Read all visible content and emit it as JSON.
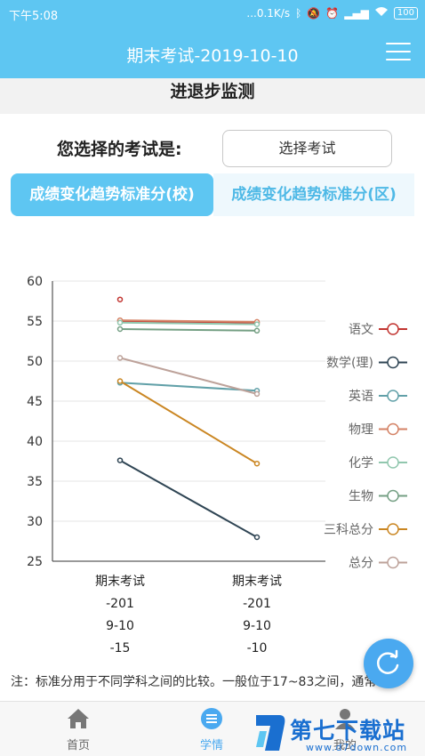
{
  "statusbar": {
    "time": "下午5:08",
    "net": "...0.1K/s",
    "battery": "100"
  },
  "header": {
    "title": "期末考试-2019-10-10"
  },
  "subheader": {
    "title": "进退步监测"
  },
  "exam": {
    "label": "您选择的考试是:",
    "select_label": "选择考试"
  },
  "tabs": [
    {
      "label": "成绩变化趋势标准分(校)",
      "active": true
    },
    {
      "label": "成绩变化趋势标准分(区)",
      "active": false
    }
  ],
  "chart_data": {
    "type": "line",
    "categories": [
      "期末考试-2019-10-15",
      "期末考试-2019-10-10"
    ],
    "category_lines": [
      [
        "期末考试",
        "-201",
        "9-10",
        "-15"
      ],
      [
        "期末考试",
        "-201",
        "9-10",
        "-10"
      ]
    ],
    "ylim": [
      25,
      60
    ],
    "yticks": [
      25,
      30,
      35,
      40,
      45,
      50,
      55,
      60
    ],
    "grid": true,
    "legend_position": "right",
    "series": [
      {
        "name": "语文",
        "color": "#c23531",
        "values": [
          55.0,
          54.8
        ]
      },
      {
        "name": "数学(理)",
        "color": "#2f4554",
        "values": [
          37.6,
          28.0
        ]
      },
      {
        "name": "英语",
        "color": "#61a0a8",
        "values": [
          47.3,
          46.3
        ]
      },
      {
        "name": "物理",
        "color": "#d48265",
        "values": [
          55.1,
          54.9
        ]
      },
      {
        "name": "化学",
        "color": "#91c7ae",
        "values": [
          54.8,
          54.6
        ]
      },
      {
        "name": "生物",
        "color": "#749f83",
        "values": [
          54.0,
          53.8
        ]
      },
      {
        "name": "三科总分",
        "color": "#ca8622",
        "values": [
          47.5,
          37.2
        ]
      },
      {
        "name": "总分",
        "color": "#bda29a",
        "values": [
          50.4,
          45.9
        ]
      }
    ],
    "extra_points": [
      {
        "x": 0,
        "y": 57.7,
        "color": "#c23531"
      }
    ]
  },
  "note": {
    "text": "注：标准分用于不同学科之间的比较。一般位于17~83之间，通常"
  },
  "nav": {
    "items": [
      {
        "label": "首页"
      },
      {
        "label": "学情"
      },
      {
        "label": "我的"
      }
    ]
  },
  "watermark": {
    "text": "第七下载站",
    "sub": "www.d7down.com"
  }
}
